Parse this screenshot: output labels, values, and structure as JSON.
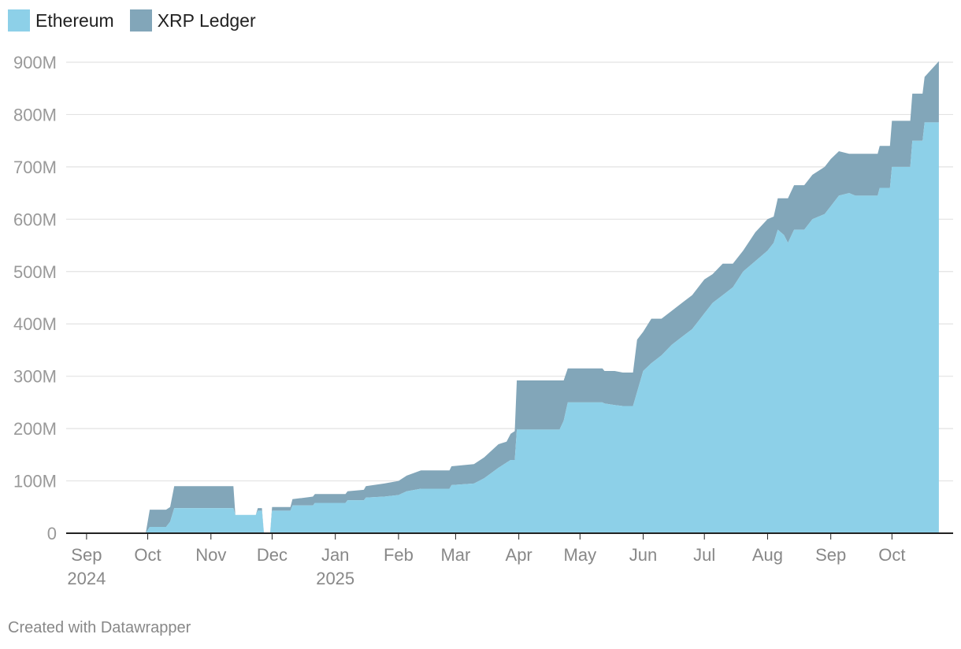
{
  "chart_data": {
    "type": "area",
    "stacked": true,
    "title": "",
    "xlabel": "",
    "ylabel": "",
    "ylim": [
      0,
      900000000
    ],
    "yticks": [
      {
        "value": 0,
        "label": "0"
      },
      {
        "value": 100000000,
        "label": "100M"
      },
      {
        "value": 200000000,
        "label": "200M"
      },
      {
        "value": 300000000,
        "label": "300M"
      },
      {
        "value": 400000000,
        "label": "400M"
      },
      {
        "value": 500000000,
        "label": "500M"
      },
      {
        "value": 600000000,
        "label": "600M"
      },
      {
        "value": 700000000,
        "label": "700M"
      },
      {
        "value": 800000000,
        "label": "800M"
      },
      {
        "value": 900000000,
        "label": "900M"
      }
    ],
    "xlim": [
      "2024-08-22",
      "2025-10-31"
    ],
    "xticks": [
      {
        "date": "2024-09-01",
        "label": "Sep",
        "year": "2024"
      },
      {
        "date": "2024-10-01",
        "label": "Oct",
        "year": ""
      },
      {
        "date": "2024-11-01",
        "label": "Nov",
        "year": ""
      },
      {
        "date": "2024-12-01",
        "label": "Dec",
        "year": ""
      },
      {
        "date": "2025-01-01",
        "label": "Jan",
        "year": "2025"
      },
      {
        "date": "2025-02-01",
        "label": "Feb",
        "year": ""
      },
      {
        "date": "2025-03-01",
        "label": "Mar",
        "year": ""
      },
      {
        "date": "2025-04-01",
        "label": "Apr",
        "year": ""
      },
      {
        "date": "2025-05-01",
        "label": "May",
        "year": ""
      },
      {
        "date": "2025-06-01",
        "label": "Jun",
        "year": ""
      },
      {
        "date": "2025-07-01",
        "label": "Jul",
        "year": ""
      },
      {
        "date": "2025-08-01",
        "label": "Aug",
        "year": ""
      },
      {
        "date": "2025-09-01",
        "label": "Sep",
        "year": ""
      },
      {
        "date": "2025-10-01",
        "label": "Oct",
        "year": ""
      }
    ],
    "grid": true,
    "legend_position": "top-left",
    "series": [
      {
        "name": "Ethereum",
        "color": "#8dd0e8",
        "points": [
          [
            "2024-09-21",
            0
          ],
          [
            "2024-09-30",
            0
          ],
          [
            "2024-10-02",
            12000000
          ],
          [
            "2024-10-10",
            12000000
          ],
          [
            "2024-10-12",
            22000000
          ],
          [
            "2024-10-14",
            48000000
          ],
          [
            "2024-11-12",
            48000000
          ],
          [
            "2024-11-13",
            35000000
          ],
          [
            "2024-11-23",
            35000000
          ],
          [
            "2024-11-24",
            43000000
          ],
          [
            "2024-11-26",
            43000000
          ],
          [
            "2024-11-27",
            0
          ],
          [
            "2024-11-30",
            0
          ],
          [
            "2024-12-01",
            43000000
          ],
          [
            "2024-12-10",
            43000000
          ],
          [
            "2024-12-11",
            53000000
          ],
          [
            "2024-12-21",
            53000000
          ],
          [
            "2024-12-22",
            58000000
          ],
          [
            "2025-01-06",
            58000000
          ],
          [
            "2025-01-07",
            63000000
          ],
          [
            "2025-01-15",
            63000000
          ],
          [
            "2025-01-16",
            68000000
          ],
          [
            "2025-01-25",
            70000000
          ],
          [
            "2025-02-01",
            73000000
          ],
          [
            "2025-02-05",
            80000000
          ],
          [
            "2025-02-12",
            85000000
          ],
          [
            "2025-02-26",
            85000000
          ],
          [
            "2025-02-27",
            92000000
          ],
          [
            "2025-03-10",
            95000000
          ],
          [
            "2025-03-15",
            105000000
          ],
          [
            "2025-03-22",
            125000000
          ],
          [
            "2025-03-26",
            135000000
          ],
          [
            "2025-03-28",
            140000000
          ],
          [
            "2025-03-30",
            140000000
          ],
          [
            "2025-03-31",
            198000000
          ],
          [
            "2025-04-21",
            198000000
          ],
          [
            "2025-04-23",
            215000000
          ],
          [
            "2025-04-25",
            250000000
          ],
          [
            "2025-05-12",
            250000000
          ],
          [
            "2025-05-13",
            248000000
          ],
          [
            "2025-05-18",
            245000000
          ],
          [
            "2025-05-22",
            243000000
          ],
          [
            "2025-05-27",
            243000000
          ],
          [
            "2025-05-29",
            270000000
          ],
          [
            "2025-06-01",
            310000000
          ],
          [
            "2025-06-05",
            325000000
          ],
          [
            "2025-06-10",
            340000000
          ],
          [
            "2025-06-15",
            360000000
          ],
          [
            "2025-06-20",
            375000000
          ],
          [
            "2025-06-25",
            390000000
          ],
          [
            "2025-07-01",
            420000000
          ],
          [
            "2025-07-05",
            440000000
          ],
          [
            "2025-07-10",
            455000000
          ],
          [
            "2025-07-15",
            470000000
          ],
          [
            "2025-07-20",
            500000000
          ],
          [
            "2025-07-26",
            520000000
          ],
          [
            "2025-08-01",
            540000000
          ],
          [
            "2025-08-04",
            555000000
          ],
          [
            "2025-08-06",
            580000000
          ],
          [
            "2025-08-09",
            570000000
          ],
          [
            "2025-08-11",
            555000000
          ],
          [
            "2025-08-14",
            580000000
          ],
          [
            "2025-08-19",
            580000000
          ],
          [
            "2025-08-23",
            600000000
          ],
          [
            "2025-08-29",
            610000000
          ],
          [
            "2025-09-01",
            625000000
          ],
          [
            "2025-09-05",
            645000000
          ],
          [
            "2025-09-10",
            650000000
          ],
          [
            "2025-09-13",
            645000000
          ],
          [
            "2025-09-24",
            645000000
          ],
          [
            "2025-09-25",
            660000000
          ],
          [
            "2025-09-30",
            660000000
          ],
          [
            "2025-10-01",
            700000000
          ],
          [
            "2025-10-08",
            700000000
          ],
          [
            "2025-10-10",
            700000000
          ],
          [
            "2025-10-11",
            750000000
          ],
          [
            "2025-10-16",
            750000000
          ],
          [
            "2025-10-17",
            785000000
          ],
          [
            "2025-10-24",
            785000000
          ]
        ]
      },
      {
        "name": "XRP Ledger",
        "color": "#82a6b9",
        "points": [
          [
            "2024-09-21",
            0
          ],
          [
            "2024-09-30",
            0
          ],
          [
            "2024-10-02",
            45000000
          ],
          [
            "2024-10-10",
            45000000
          ],
          [
            "2024-10-12",
            50000000
          ],
          [
            "2024-10-14",
            90000000
          ],
          [
            "2024-11-12",
            90000000
          ],
          [
            "2024-11-13",
            35000000
          ],
          [
            "2024-11-23",
            35000000
          ],
          [
            "2024-11-24",
            48000000
          ],
          [
            "2024-11-26",
            48000000
          ],
          [
            "2024-11-27",
            0
          ],
          [
            "2024-11-30",
            0
          ],
          [
            "2024-12-01",
            50000000
          ],
          [
            "2024-12-10",
            50000000
          ],
          [
            "2024-12-11",
            65000000
          ],
          [
            "2024-12-21",
            70000000
          ],
          [
            "2024-12-22",
            75000000
          ],
          [
            "2025-01-06",
            75000000
          ],
          [
            "2025-01-07",
            80000000
          ],
          [
            "2025-01-15",
            83000000
          ],
          [
            "2025-01-16",
            90000000
          ],
          [
            "2025-01-25",
            95000000
          ],
          [
            "2025-02-01",
            100000000
          ],
          [
            "2025-02-05",
            110000000
          ],
          [
            "2025-02-12",
            120000000
          ],
          [
            "2025-02-26",
            120000000
          ],
          [
            "2025-02-27",
            128000000
          ],
          [
            "2025-03-10",
            132000000
          ],
          [
            "2025-03-15",
            145000000
          ],
          [
            "2025-03-22",
            170000000
          ],
          [
            "2025-03-26",
            175000000
          ],
          [
            "2025-03-28",
            190000000
          ],
          [
            "2025-03-30",
            195000000
          ],
          [
            "2025-03-31",
            292000000
          ],
          [
            "2025-04-21",
            292000000
          ],
          [
            "2025-04-23",
            292000000
          ],
          [
            "2025-04-25",
            315000000
          ],
          [
            "2025-05-12",
            315000000
          ],
          [
            "2025-05-13",
            310000000
          ],
          [
            "2025-05-18",
            310000000
          ],
          [
            "2025-05-22",
            307000000
          ],
          [
            "2025-05-27",
            307000000
          ],
          [
            "2025-05-29",
            370000000
          ],
          [
            "2025-06-01",
            385000000
          ],
          [
            "2025-06-05",
            410000000
          ],
          [
            "2025-06-10",
            410000000
          ],
          [
            "2025-06-15",
            425000000
          ],
          [
            "2025-06-20",
            440000000
          ],
          [
            "2025-06-25",
            455000000
          ],
          [
            "2025-07-01",
            485000000
          ],
          [
            "2025-07-05",
            495000000
          ],
          [
            "2025-07-10",
            515000000
          ],
          [
            "2025-07-15",
            515000000
          ],
          [
            "2025-07-20",
            540000000
          ],
          [
            "2025-07-26",
            575000000
          ],
          [
            "2025-08-01",
            600000000
          ],
          [
            "2025-08-04",
            605000000
          ],
          [
            "2025-08-06",
            640000000
          ],
          [
            "2025-08-09",
            640000000
          ],
          [
            "2025-08-11",
            640000000
          ],
          [
            "2025-08-14",
            665000000
          ],
          [
            "2025-08-19",
            665000000
          ],
          [
            "2025-08-23",
            685000000
          ],
          [
            "2025-08-29",
            700000000
          ],
          [
            "2025-09-01",
            715000000
          ],
          [
            "2025-09-05",
            730000000
          ],
          [
            "2025-09-10",
            725000000
          ],
          [
            "2025-09-13",
            725000000
          ],
          [
            "2025-09-24",
            725000000
          ],
          [
            "2025-09-25",
            740000000
          ],
          [
            "2025-09-30",
            740000000
          ],
          [
            "2025-10-01",
            788000000
          ],
          [
            "2025-10-08",
            788000000
          ],
          [
            "2025-10-10",
            788000000
          ],
          [
            "2025-10-11",
            840000000
          ],
          [
            "2025-10-16",
            840000000
          ],
          [
            "2025-10-17",
            872000000
          ],
          [
            "2025-10-24",
            902000000
          ]
        ]
      }
    ]
  },
  "footer": {
    "credit": "Created with Datawrapper"
  }
}
